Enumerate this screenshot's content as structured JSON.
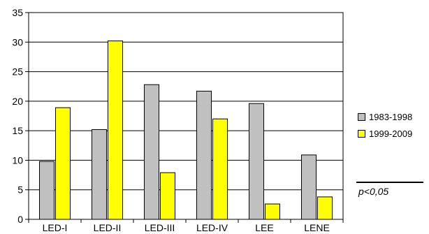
{
  "chart_data": {
    "type": "bar",
    "categories": [
      "LED-I",
      "LED-II",
      "LED-III",
      "LED-IV",
      "LEE",
      "LENE"
    ],
    "series": [
      {
        "name": "1983-1998",
        "color": "#c0c0c0",
        "values": [
          9.8,
          15.2,
          22.8,
          21.7,
          19.6,
          10.9
        ]
      },
      {
        "name": "1999-2009",
        "color": "#ffff00",
        "values": [
          18.9,
          30.2,
          7.9,
          17.0,
          2.6,
          3.8
        ]
      }
    ],
    "yticks": [
      0,
      5,
      10,
      15,
      20,
      25,
      30,
      35
    ],
    "ylim": [
      0,
      35
    ],
    "grid": true,
    "legend_position": "right",
    "title": "",
    "xlabel": "",
    "ylabel": ""
  },
  "annotation": "p<0,05"
}
